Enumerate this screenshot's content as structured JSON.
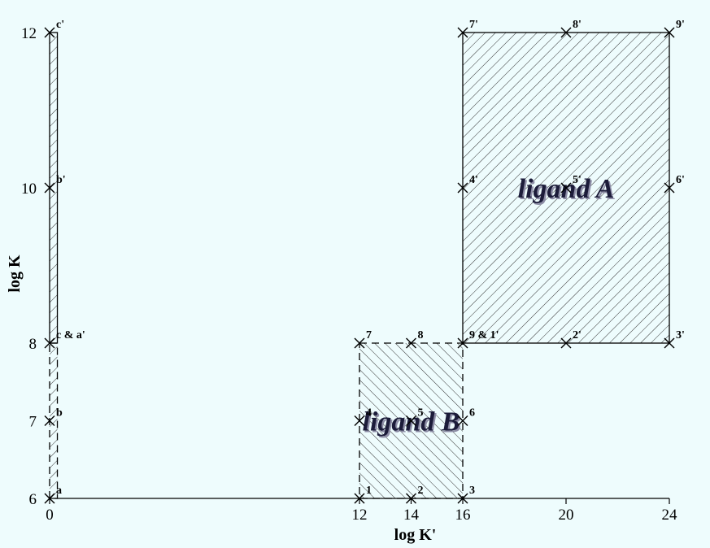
{
  "chart_data": {
    "type": "scatter",
    "title": "",
    "xlabel": "log K'",
    "ylabel": "log K",
    "xlim": [
      0,
      24
    ],
    "ylim": [
      6,
      12
    ],
    "xticks": [
      0,
      12,
      14,
      16,
      20,
      24
    ],
    "yticks": [
      6,
      7,
      8,
      10,
      12
    ],
    "regions": [
      {
        "label": "",
        "x": [
          0,
          0.3
        ],
        "y": [
          6,
          8
        ],
        "style": "dashed",
        "hatch": "forward"
      },
      {
        "label": "",
        "x": [
          0,
          0.3
        ],
        "y": [
          8,
          12
        ],
        "style": "solid",
        "hatch": "forward"
      },
      {
        "label": "ligand B",
        "x": [
          12,
          16
        ],
        "y": [
          6,
          8
        ],
        "style": "dashed",
        "hatch": "backward"
      },
      {
        "label": "ligand A",
        "x": [
          16,
          24
        ],
        "y": [
          8,
          12
        ],
        "style": "solid",
        "hatch": "forward"
      }
    ],
    "points": [
      {
        "label": "a",
        "x": 0,
        "y": 6
      },
      {
        "label": "b",
        "x": 0,
        "y": 7
      },
      {
        "label": "c & a'",
        "x": 0,
        "y": 8
      },
      {
        "label": "b'",
        "x": 0,
        "y": 10
      },
      {
        "label": "c'",
        "x": 0,
        "y": 12
      },
      {
        "label": "1",
        "x": 12,
        "y": 6
      },
      {
        "label": "2",
        "x": 14,
        "y": 6
      },
      {
        "label": "3",
        "x": 16,
        "y": 6
      },
      {
        "label": "4",
        "x": 12,
        "y": 7
      },
      {
        "label": "5",
        "x": 14,
        "y": 7
      },
      {
        "label": "6",
        "x": 16,
        "y": 7
      },
      {
        "label": "7",
        "x": 12,
        "y": 8
      },
      {
        "label": "8",
        "x": 14,
        "y": 8
      },
      {
        "label": "9 & 1'",
        "x": 16,
        "y": 8
      },
      {
        "label": "2'",
        "x": 20,
        "y": 8
      },
      {
        "label": "3'",
        "x": 24,
        "y": 8
      },
      {
        "label": "4'",
        "x": 16,
        "y": 10
      },
      {
        "label": "5'",
        "x": 20,
        "y": 10
      },
      {
        "label": "6'",
        "x": 24,
        "y": 10
      },
      {
        "label": "7'",
        "x": 16,
        "y": 12
      },
      {
        "label": "8'",
        "x": 20,
        "y": 12
      },
      {
        "label": "9'",
        "x": 24,
        "y": 12
      }
    ]
  }
}
